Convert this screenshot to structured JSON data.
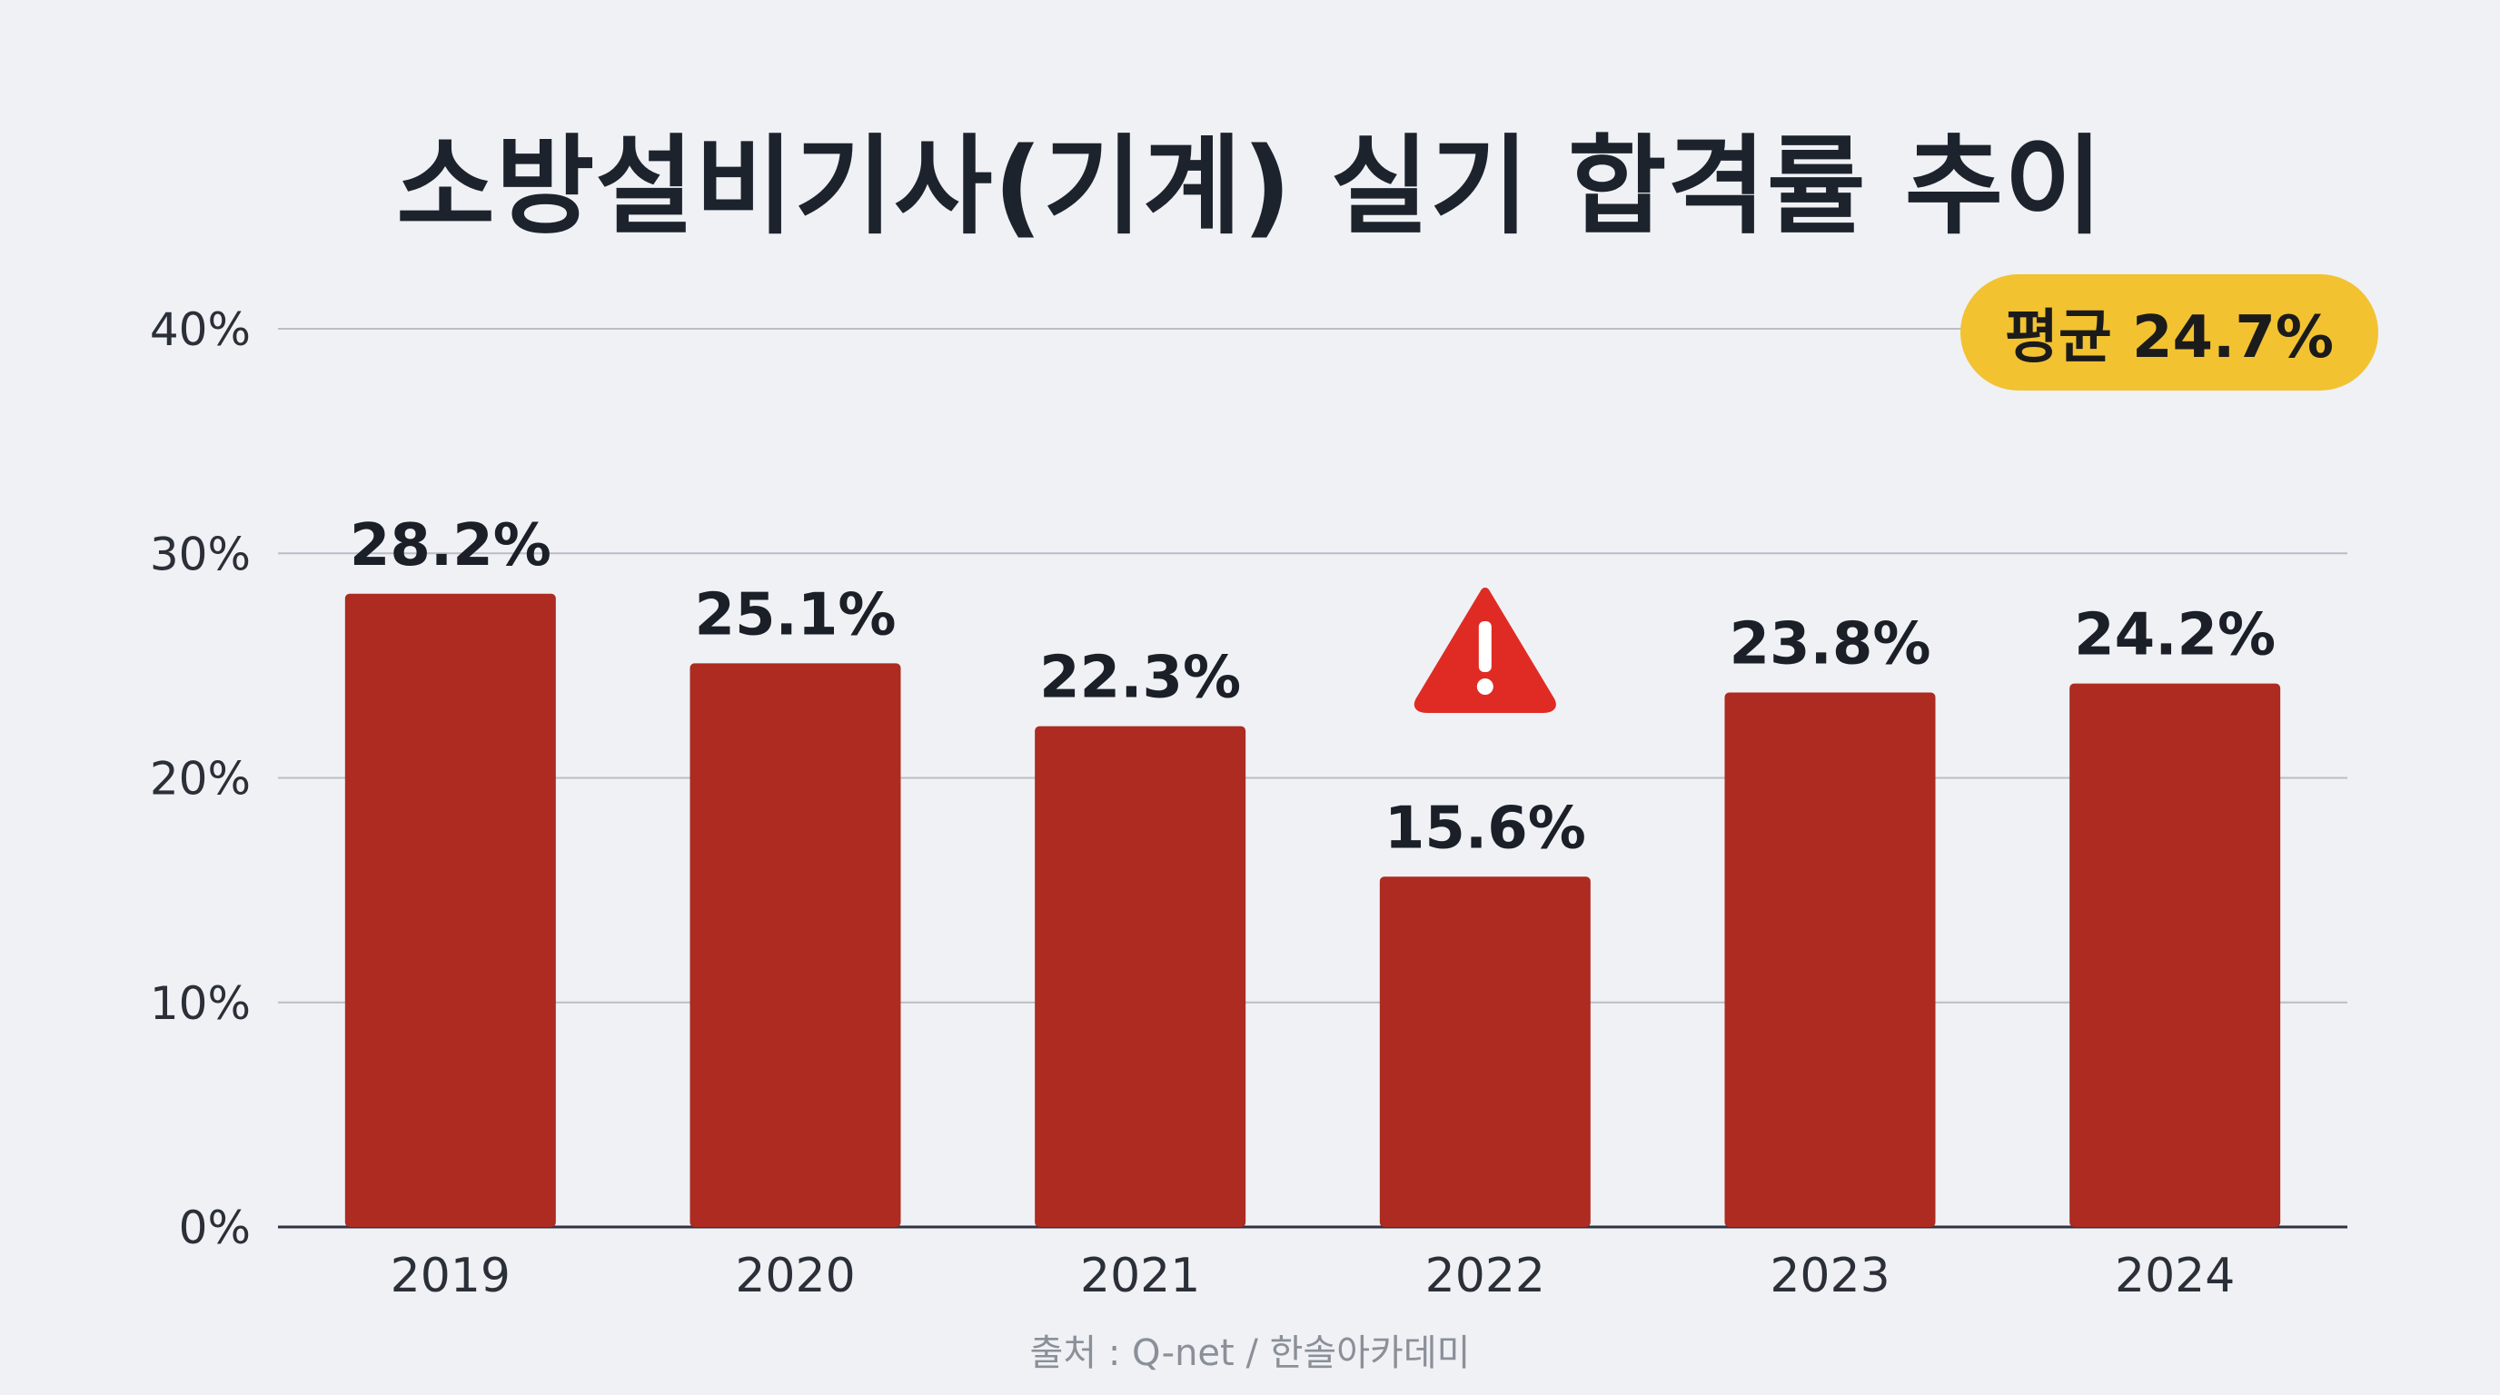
{
  "colors": {
    "background": "#eff1f5",
    "bar": "#ad2b21",
    "title": "#1d232d",
    "badge": "#f2c231",
    "warning": "#e02b24",
    "grid": "#b9bec6",
    "axis": "#2e3440"
  },
  "icons": {
    "warning": "warning-triangle-icon"
  },
  "badge": {
    "text": "평균 24.7%"
  },
  "source": "출처 : Q-net / 한솔아카데미",
  "chart_data": {
    "type": "bar",
    "title": "소방설비기사(기계) 실기 합격률 추이",
    "xlabel": "",
    "ylabel": "",
    "ylim": [
      0,
      40
    ],
    "yticks": [
      0,
      10,
      20,
      30,
      40
    ],
    "ytick_labels": [
      "0%",
      "10%",
      "20%",
      "30%",
      "40%"
    ],
    "grid": true,
    "categories": [
      "2019",
      "2020",
      "2021",
      "2022",
      "2023",
      "2024"
    ],
    "values": [
      28.2,
      25.1,
      22.3,
      15.6,
      23.8,
      24.2
    ],
    "value_labels": [
      "28.2%",
      "25.1%",
      "22.3%",
      "15.6%",
      "23.8%",
      "24.2%"
    ],
    "warning_category": "2022"
  }
}
